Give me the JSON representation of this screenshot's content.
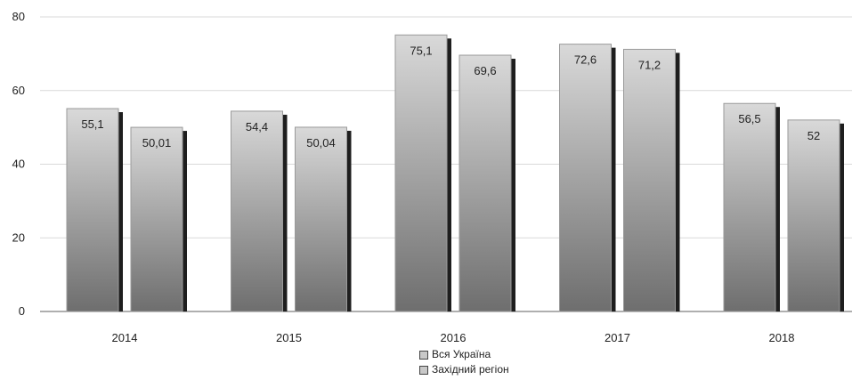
{
  "chart_data": {
    "type": "bar",
    "categories": [
      "2014",
      "2015",
      "2016",
      "2017",
      "2018"
    ],
    "series": [
      {
        "name": "Вся Україна",
        "values": [
          55.1,
          54.4,
          75.1,
          72.6,
          56.5
        ],
        "labels": [
          "55,1",
          "54,4",
          "75,1",
          "72,6",
          "56,5"
        ]
      },
      {
        "name": "Західний регіон",
        "values": [
          50.01,
          50.04,
          69.6,
          71.2,
          52
        ],
        "labels": [
          "50,01",
          "50,04",
          "69,6",
          "71,2",
          "52"
        ]
      }
    ],
    "yticks": [
      "0",
      "20",
      "40",
      "60",
      "80"
    ],
    "ylim": [
      0,
      80
    ],
    "grid": true,
    "legend_position": "bottom",
    "colors": {
      "bar_light": "#d9d9d9",
      "bar_dark": "#6e6e6e",
      "shadow": "#1e1e1e",
      "grid": "#d9d9d9",
      "axis": "#7f7f7f"
    }
  }
}
